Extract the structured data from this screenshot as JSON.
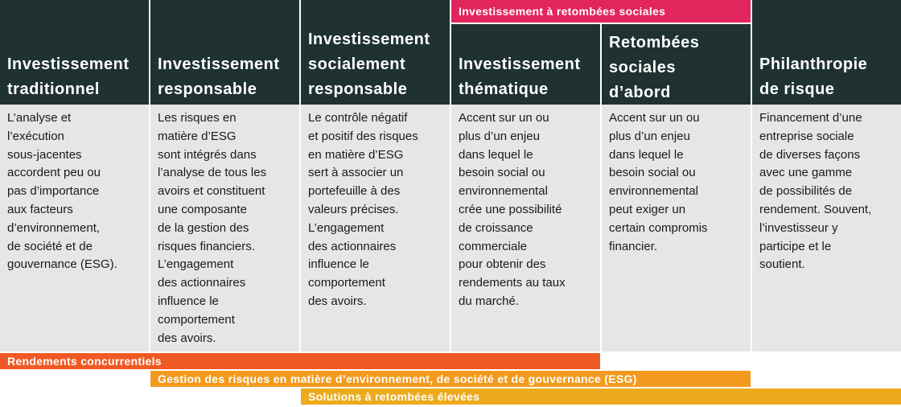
{
  "band_label": "Investissement à retombées sociales",
  "columns": [
    {
      "header": [
        "Investissement",
        "traditionnel"
      ],
      "body": [
        "L’analyse et",
        "l’exécution",
        "sous-jacentes",
        "accordent peu ou",
        "pas d’importance",
        "aux facteurs",
        "d’environnement,",
        "de société et de",
        "gouvernance (ESG)."
      ]
    },
    {
      "header": [
        "Investissement",
        "responsable"
      ],
      "body": [
        "Les risques en",
        "matière d’ESG",
        "sont intégrés dans",
        "l’analyse de tous les",
        "avoirs et constituent",
        "une composante",
        "de la gestion des",
        "risques financiers.",
        "L’engagement",
        "des actionnaires",
        "influence le",
        "comportement",
        "des avoirs."
      ]
    },
    {
      "header": [
        "Investissement",
        "socialement",
        "responsable"
      ],
      "body": [
        "Le contrôle négatif",
        "et positif des risques",
        "en matière d’ESG",
        "sert à associer un",
        "portefeuille à des",
        "valeurs précises.",
        "L’engagement",
        "des actionnaires",
        "influence le",
        "comportement",
        "des avoirs."
      ]
    },
    {
      "header": [
        "Investissement",
        "thématique"
      ],
      "body": [
        "Accent sur un ou",
        "plus d’un enjeu",
        "dans lequel le",
        "besoin social ou",
        "environnemental",
        "crée une possibilité",
        "de croissance",
        "commerciale",
        "pour obtenir des",
        "rendements au taux",
        "du marché."
      ]
    },
    {
      "header": [
        "Retombées",
        "sociales",
        "d’abord"
      ],
      "body": [
        "Accent sur un ou",
        "plus d’un enjeu",
        "dans lequel le",
        "besoin social ou",
        "environnemental",
        "peut exiger un",
        "certain compromis",
        "financier."
      ]
    },
    {
      "header": [
        "Philanthropie",
        "de risque"
      ],
      "body": [
        "Financement d’une",
        "entreprise sociale",
        "de diverses façons",
        "avec une gamme",
        "de possibilités de",
        "rendement. Souvent,",
        "l’investisseur y",
        "participe et le",
        "soutient."
      ]
    }
  ],
  "bars": [
    {
      "label": "Rendements concurrentiels",
      "color": "#ef5a24"
    },
    {
      "label": "Gestion des risques en matière d’environnement, de société et de gouvernance (ESG)",
      "color": "#f39a1e"
    },
    {
      "label": "Solutions à retombées élevées",
      "color": "#ecaa1c"
    }
  ],
  "colors": {
    "header_bg": "#1f3231",
    "body_bg": "#e6e6e7",
    "band": "#e2255c"
  }
}
